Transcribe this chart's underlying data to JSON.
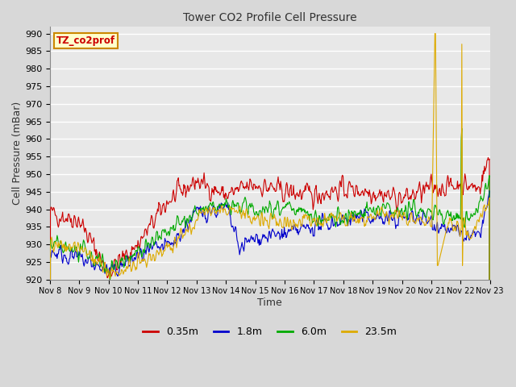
{
  "title": "Tower CO2 Profile Cell Pressure",
  "xlabel": "Time",
  "ylabel": "Cell Pressure (mBar)",
  "ylim": [
    920,
    992
  ],
  "yticks": [
    920,
    925,
    930,
    935,
    940,
    945,
    950,
    955,
    960,
    965,
    970,
    975,
    980,
    985,
    990
  ],
  "xtick_labels": [
    "Nov 8",
    "Nov 9",
    "Nov 10",
    "Nov 11",
    "Nov 12",
    "Nov 13",
    "Nov 14",
    "Nov 15",
    "Nov 16",
    "Nov 17",
    "Nov 18",
    "Nov 19",
    "Nov 20",
    "Nov 21",
    "Nov 22",
    "Nov 23"
  ],
  "colors": {
    "0.35m": "#cc0000",
    "1.8m": "#0000cc",
    "6.0m": "#00aa00",
    "23.5m": "#ddaa00"
  },
  "legend_labels": [
    "0.35m",
    "1.8m",
    "6.0m",
    "23.5m"
  ],
  "site_label": "TZ_co2prof",
  "site_label_color": "#cc0000",
  "site_label_bg": "#ffffcc",
  "site_label_border": "#cc8800",
  "bg_color": "#d8d8d8",
  "plot_bg_color": "#e8e8e8",
  "grid_color": "#ffffff",
  "linewidth": 0.8,
  "n_days": 15,
  "n_per_day": 48
}
